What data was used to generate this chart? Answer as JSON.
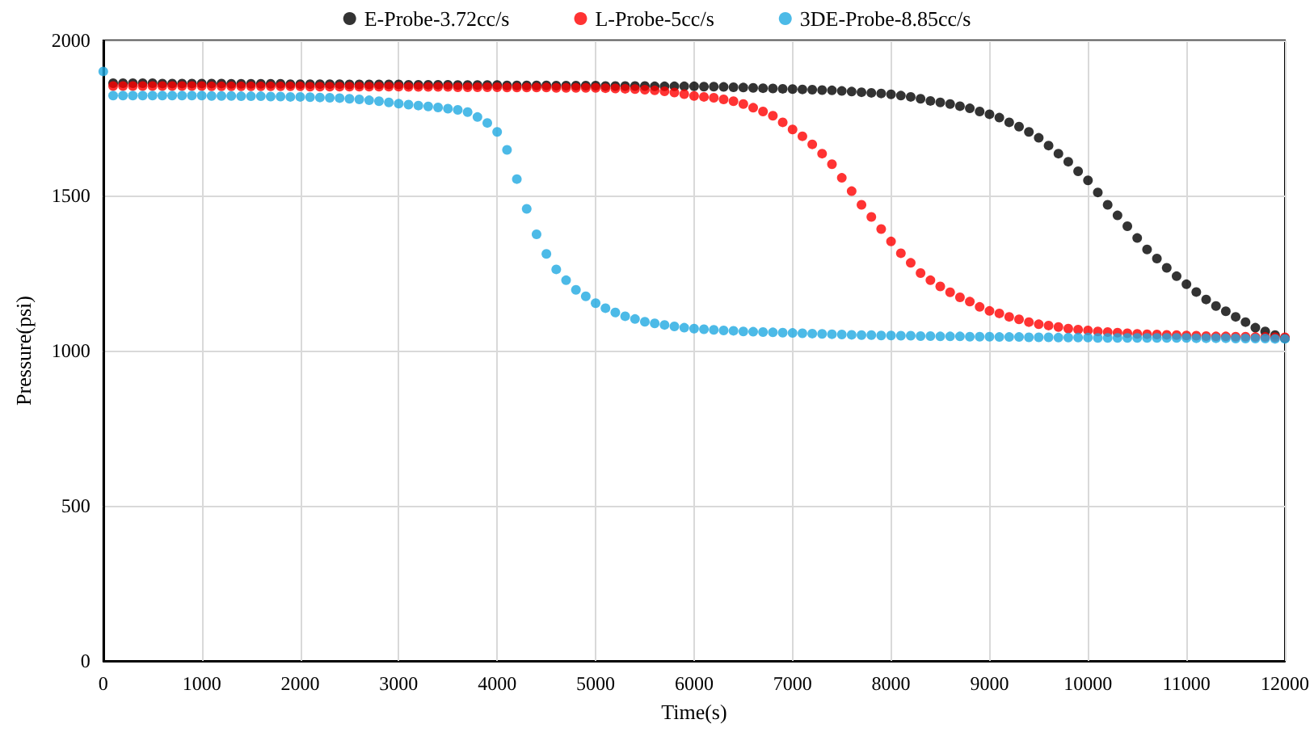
{
  "chart_data": {
    "type": "scatter",
    "xlabel": "Time(s)",
    "ylabel": "Pressure(psi)",
    "x": [
      0,
      100,
      200,
      300,
      400,
      500,
      600,
      700,
      800,
      900,
      1000,
      1100,
      1200,
      1300,
      1400,
      1500,
      1600,
      1700,
      1800,
      1900,
      2000,
      2100,
      2200,
      2300,
      2400,
      2500,
      2600,
      2700,
      2800,
      2900,
      3000,
      3100,
      3200,
      3300,
      3400,
      3500,
      3600,
      3700,
      3800,
      3900,
      4000,
      4100,
      4200,
      4300,
      4400,
      4500,
      4600,
      4700,
      4800,
      4900,
      5000,
      5100,
      5200,
      5300,
      5400,
      5500,
      5600,
      5700,
      5800,
      5900,
      6000,
      6100,
      6200,
      6300,
      6400,
      6500,
      6600,
      6700,
      6800,
      6900,
      7000,
      7100,
      7200,
      7300,
      7400,
      7500,
      7600,
      7700,
      7800,
      7900,
      8000,
      8100,
      8200,
      8300,
      8400,
      8500,
      8600,
      8700,
      8800,
      8900,
      9000,
      9100,
      9200,
      9300,
      9400,
      9500,
      9600,
      9700,
      9800,
      9900,
      10000,
      10100,
      10200,
      10300,
      10400,
      10500,
      10600,
      10700,
      10800,
      10900,
      11000,
      11100,
      11200,
      11300,
      11400,
      11500,
      11600,
      11700,
      11800,
      11900,
      12000
    ],
    "series": [
      {
        "name": "E-Probe-3.72cc/s",
        "color": "#000000",
        "values": [
          null,
          1862,
          1862,
          1862,
          1862,
          1862,
          1861,
          1861,
          1861,
          1861,
          1861,
          1861,
          1861,
          1860,
          1860,
          1860,
          1860,
          1860,
          1860,
          1859,
          1859,
          1859,
          1859,
          1859,
          1859,
          1858,
          1858,
          1858,
          1858,
          1858,
          1858,
          1857,
          1857,
          1857,
          1857,
          1857,
          1856,
          1856,
          1856,
          1856,
          1856,
          1855,
          1855,
          1855,
          1855,
          1855,
          1854,
          1854,
          1854,
          1854,
          1854,
          1853,
          1853,
          1853,
          1853,
          1853,
          1852,
          1852,
          1852,
          1852,
          1852,
          1851,
          1851,
          1850,
          1849,
          1848,
          1847,
          1846,
          1845,
          1844,
          1843,
          1842,
          1841,
          1840,
          1839,
          1837,
          1835,
          1833,
          1831,
          1829,
          1826,
          1822,
          1818,
          1812,
          1805,
          1800,
          1795,
          1788,
          1781,
          1771,
          1762,
          1751,
          1736,
          1722,
          1705,
          1686,
          1661,
          1635,
          1609,
          1578,
          1549,
          1510,
          1470,
          1436,
          1401,
          1363,
          1326,
          1297,
          1267,
          1240,
          1214,
          1189,
          1165,
          1144,
          1127,
          1109,
          1092,
          1074,
          1062,
          1050,
          1040
        ]
      },
      {
        "name": "L-Probe-5cc/s",
        "color": "#ff0000",
        "values": [
          null,
          1853,
          1853,
          1853,
          1853,
          1853,
          1853,
          1853,
          1853,
          1853,
          1853,
          1852,
          1852,
          1852,
          1852,
          1852,
          1852,
          1852,
          1852,
          1852,
          1852,
          1851,
          1851,
          1851,
          1851,
          1851,
          1851,
          1851,
          1851,
          1851,
          1851,
          1850,
          1850,
          1850,
          1850,
          1850,
          1849,
          1849,
          1849,
          1849,
          1849,
          1848,
          1848,
          1848,
          1848,
          1848,
          1847,
          1847,
          1847,
          1847,
          1847,
          1846,
          1845,
          1844,
          1843,
          1841,
          1839,
          1836,
          1832,
          1827,
          1821,
          1818,
          1815,
          1810,
          1804,
          1795,
          1783,
          1771,
          1757,
          1736,
          1713,
          1691,
          1665,
          1635,
          1601,
          1557,
          1514,
          1470,
          1431,
          1392,
          1352,
          1314,
          1283,
          1250,
          1227,
          1207,
          1188,
          1172,
          1158,
          1141,
          1128,
          1120,
          1109,
          1101,
          1092,
          1085,
          1081,
          1076,
          1071,
          1068,
          1065,
          1062,
          1060,
          1058,
          1056,
          1054,
          1053,
          1052,
          1051,
          1050,
          1049,
          1048,
          1047,
          1046,
          1046,
          1045,
          1045,
          1044,
          1044,
          1043,
          1043
        ]
      },
      {
        "name": "3DE-Probe-8.85cc/s",
        "color": "#1fa9e1",
        "values": [
          1900,
          1822,
          1822,
          1822,
          1822,
          1822,
          1822,
          1822,
          1822,
          1822,
          1822,
          1821,
          1821,
          1821,
          1820,
          1820,
          1820,
          1819,
          1819,
          1818,
          1818,
          1817,
          1816,
          1815,
          1814,
          1812,
          1810,
          1807,
          1804,
          1800,
          1796,
          1793,
          1790,
          1787,
          1784,
          1780,
          1776,
          1769,
          1753,
          1734,
          1705,
          1647,
          1553,
          1457,
          1375,
          1312,
          1262,
          1227,
          1196,
          1175,
          1153,
          1137,
          1123,
          1111,
          1102,
          1093,
          1088,
          1083,
          1078,
          1074,
          1071,
          1069,
          1067,
          1065,
          1064,
          1062,
          1061,
          1060,
          1059,
          1058,
          1057,
          1056,
          1055,
          1054,
          1053,
          1052,
          1051,
          1050,
          1050,
          1049,
          1049,
          1048,
          1048,
          1047,
          1047,
          1046,
          1046,
          1046,
          1045,
          1045,
          1045,
          1044,
          1044,
          1044,
          1043,
          1043,
          1043,
          1042,
          1042,
          1042,
          1042,
          1041,
          1041,
          1041,
          1041,
          1041,
          1041,
          1041,
          1041,
          1041,
          1041,
          1040,
          1040,
          1040,
          1040,
          1039,
          1039,
          1039,
          1039,
          1038,
          1038
        ]
      }
    ],
    "xlim": [
      0,
      12000
    ],
    "xticks": [
      0,
      1000,
      2000,
      3000,
      4000,
      5000,
      6000,
      7000,
      8000,
      9000,
      10000,
      11000,
      12000
    ],
    "ylim": [
      0,
      2000
    ],
    "yticks": [
      0,
      500,
      1000,
      1500,
      2000
    ],
    "grid": true,
    "legend": "top",
    "marker": "circle"
  }
}
